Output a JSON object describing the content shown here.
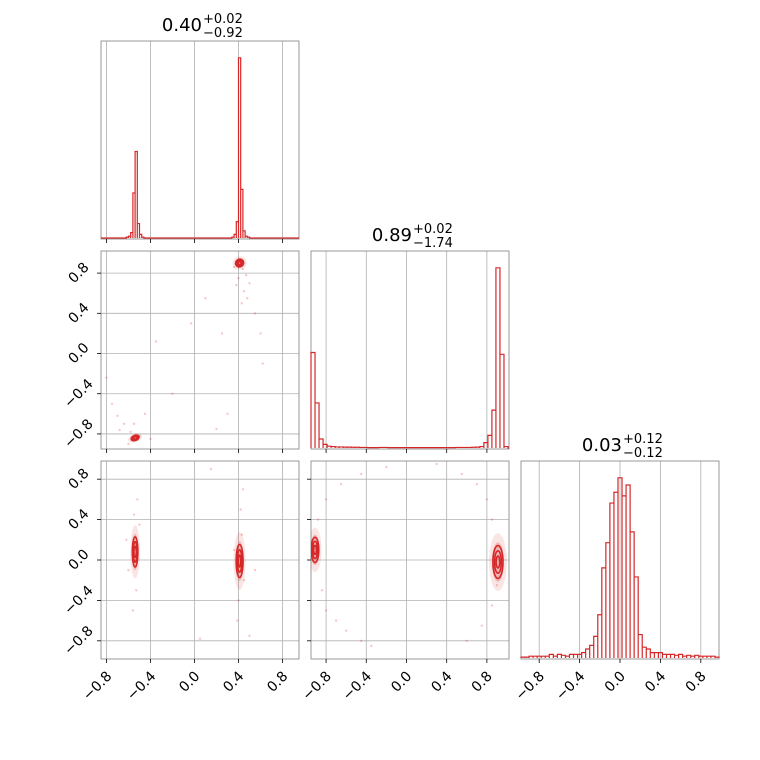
{
  "colors": {
    "series": "#d62728",
    "grid": "#b0b0b0",
    "frame": "#808080"
  },
  "chart_data": {
    "type": "corner",
    "grid": true,
    "parameters": [
      {
        "median": "0.40",
        "plus": "+0.02",
        "minus": "−0.92",
        "range": [
          -0.85,
          0.95
        ]
      },
      {
        "median": "0.89",
        "plus": "+0.02",
        "minus": "−1.74",
        "range": [
          -0.95,
          1.02
        ]
      },
      {
        "median": "0.03",
        "plus": "+0.12",
        "minus": "−0.12",
        "range": [
          -0.98,
          0.98
        ]
      }
    ],
    "tick_labels": [
      "−0.8",
      "−0.4",
      "0.0",
      "0.4",
      "0.8"
    ],
    "tick_values": [
      -0.8,
      -0.4,
      0.0,
      0.4,
      0.8
    ],
    "histograms": [
      {
        "param": 0,
        "bin_width": 0.02,
        "bins": [
          {
            "x": -0.61,
            "h": 0.005
          },
          {
            "x": -0.59,
            "h": 0.01
          },
          {
            "x": -0.57,
            "h": 0.03
          },
          {
            "x": -0.55,
            "h": 0.25
          },
          {
            "x": -0.53,
            "h": 0.48
          },
          {
            "x": -0.51,
            "h": 0.08
          },
          {
            "x": -0.49,
            "h": 0.02
          },
          {
            "x": -0.47,
            "h": 0.005
          },
          {
            "x": 0.35,
            "h": 0.005
          },
          {
            "x": 0.37,
            "h": 0.02
          },
          {
            "x": 0.39,
            "h": 0.09
          },
          {
            "x": 0.41,
            "h": 1.0
          },
          {
            "x": 0.43,
            "h": 0.27
          },
          {
            "x": 0.45,
            "h": 0.04
          },
          {
            "x": 0.47,
            "h": 0.01
          },
          {
            "x": 0.49,
            "h": 0.005
          }
        ]
      },
      {
        "param": 1,
        "bin_width": 0.04,
        "bins": [
          {
            "x": -0.93,
            "h": 0.53
          },
          {
            "x": -0.89,
            "h": 0.25
          },
          {
            "x": -0.85,
            "h": 0.05
          },
          {
            "x": -0.81,
            "h": 0.02
          },
          {
            "x": -0.77,
            "h": 0.01
          },
          {
            "x": -0.73,
            "h": 0.008
          },
          {
            "x": -0.69,
            "h": 0.006
          },
          {
            "x": -0.65,
            "h": 0.006
          },
          {
            "x": -0.61,
            "h": 0.005
          },
          {
            "x": -0.57,
            "h": 0.005
          },
          {
            "x": -0.53,
            "h": 0.004
          },
          {
            "x": -0.49,
            "h": 0.004
          },
          {
            "x": -0.45,
            "h": 0.003
          },
          {
            "x": -0.41,
            "h": 0.003
          },
          {
            "x": -0.37,
            "h": 0.002
          },
          {
            "x": -0.33,
            "h": 0.002
          },
          {
            "x": -0.29,
            "h": 0.002
          },
          {
            "x": -0.25,
            "h": 0.003
          },
          {
            "x": -0.21,
            "h": 0.003
          },
          {
            "x": -0.17,
            "h": 0.002
          },
          {
            "x": -0.13,
            "h": 0.002
          },
          {
            "x": -0.09,
            "h": 0.002
          },
          {
            "x": -0.05,
            "h": 0.002
          },
          {
            "x": -0.01,
            "h": 0.002
          },
          {
            "x": 0.03,
            "h": 0.002
          },
          {
            "x": 0.07,
            "h": 0.002
          },
          {
            "x": 0.11,
            "h": 0.002
          },
          {
            "x": 0.15,
            "h": 0.002
          },
          {
            "x": 0.19,
            "h": 0.002
          },
          {
            "x": 0.23,
            "h": 0.002
          },
          {
            "x": 0.27,
            "h": 0.002
          },
          {
            "x": 0.31,
            "h": 0.002
          },
          {
            "x": 0.35,
            "h": 0.002
          },
          {
            "x": 0.39,
            "h": 0.002
          },
          {
            "x": 0.43,
            "h": 0.002
          },
          {
            "x": 0.47,
            "h": 0.002
          },
          {
            "x": 0.51,
            "h": 0.003
          },
          {
            "x": 0.55,
            "h": 0.003
          },
          {
            "x": 0.59,
            "h": 0.003
          },
          {
            "x": 0.63,
            "h": 0.003
          },
          {
            "x": 0.67,
            "h": 0.004
          },
          {
            "x": 0.71,
            "h": 0.005
          },
          {
            "x": 0.75,
            "h": 0.008
          },
          {
            "x": 0.79,
            "h": 0.03
          },
          {
            "x": 0.83,
            "h": 0.07
          },
          {
            "x": 0.87,
            "h": 0.21
          },
          {
            "x": 0.91,
            "h": 1.0
          },
          {
            "x": 0.95,
            "h": 0.52
          },
          {
            "x": 0.99,
            "h": 0.008
          }
        ]
      },
      {
        "param": 2,
        "bin_width": 0.04,
        "bins": [
          {
            "x": -0.96,
            "h": 0.005
          },
          {
            "x": -0.92,
            "h": 0.005
          },
          {
            "x": -0.88,
            "h": 0.01
          },
          {
            "x": -0.84,
            "h": 0.01
          },
          {
            "x": -0.8,
            "h": 0.01
          },
          {
            "x": -0.76,
            "h": 0.01
          },
          {
            "x": -0.72,
            "h": 0.01
          },
          {
            "x": -0.68,
            "h": 0.02
          },
          {
            "x": -0.64,
            "h": 0.01
          },
          {
            "x": -0.6,
            "h": 0.02
          },
          {
            "x": -0.56,
            "h": 0.015
          },
          {
            "x": -0.52,
            "h": 0.01
          },
          {
            "x": -0.48,
            "h": 0.02
          },
          {
            "x": -0.44,
            "h": 0.02
          },
          {
            "x": -0.4,
            "h": 0.02
          },
          {
            "x": -0.36,
            "h": 0.03
          },
          {
            "x": -0.32,
            "h": 0.05
          },
          {
            "x": -0.28,
            "h": 0.07
          },
          {
            "x": -0.24,
            "h": 0.12
          },
          {
            "x": -0.2,
            "h": 0.24
          },
          {
            "x": -0.16,
            "h": 0.5
          },
          {
            "x": -0.12,
            "h": 0.64
          },
          {
            "x": -0.08,
            "h": 0.86
          },
          {
            "x": -0.04,
            "h": 0.92
          },
          {
            "x": 0.0,
            "h": 1.0
          },
          {
            "x": 0.04,
            "h": 0.9
          },
          {
            "x": 0.08,
            "h": 0.96
          },
          {
            "x": 0.12,
            "h": 0.7
          },
          {
            "x": 0.16,
            "h": 0.45
          },
          {
            "x": 0.2,
            "h": 0.13
          },
          {
            "x": 0.24,
            "h": 0.06
          },
          {
            "x": 0.28,
            "h": 0.05
          },
          {
            "x": 0.32,
            "h": 0.03
          },
          {
            "x": 0.36,
            "h": 0.03
          },
          {
            "x": 0.4,
            "h": 0.03
          },
          {
            "x": 0.44,
            "h": 0.02
          },
          {
            "x": 0.48,
            "h": 0.02
          },
          {
            "x": 0.52,
            "h": 0.02
          },
          {
            "x": 0.56,
            "h": 0.015
          },
          {
            "x": 0.6,
            "h": 0.02
          },
          {
            "x": 0.64,
            "h": 0.01
          },
          {
            "x": 0.68,
            "h": 0.015
          },
          {
            "x": 0.72,
            "h": 0.01
          },
          {
            "x": 0.76,
            "h": 0.015
          },
          {
            "x": 0.8,
            "h": 0.01
          },
          {
            "x": 0.84,
            "h": 0.01
          },
          {
            "x": 0.88,
            "h": 0.01
          },
          {
            "x": 0.92,
            "h": 0.01
          },
          {
            "x": 0.96,
            "h": 0.005
          }
        ]
      }
    ],
    "pairs": [
      {
        "x_param": 0,
        "y_param": 1,
        "modes": [
          {
            "cx": 0.41,
            "cy": 0.9,
            "rx": 0.03,
            "ry": 0.03,
            "angle": -30
          },
          {
            "cx": -0.54,
            "cy": -0.84,
            "rx": 0.03,
            "ry": 0.02,
            "angle": -20
          }
        ],
        "scatter": [
          [
            0.44,
            0.84
          ],
          [
            0.47,
            0.78
          ],
          [
            0.36,
            0.86
          ],
          [
            0.5,
            0.7
          ],
          [
            0.45,
            0.62
          ],
          [
            0.43,
            0.5
          ],
          [
            0.48,
            0.55
          ],
          [
            -0.03,
            0.3
          ],
          [
            -0.35,
            0.12
          ],
          [
            -0.58,
            -0.78
          ],
          [
            -0.64,
            -0.7
          ],
          [
            -0.7,
            -0.62
          ],
          [
            -0.6,
            -0.9
          ],
          [
            -0.5,
            -0.82
          ],
          [
            -0.68,
            -0.76
          ],
          [
            -0.75,
            -0.5
          ],
          [
            -0.8,
            -0.24
          ],
          [
            0.2,
            -0.75
          ],
          [
            0.3,
            -0.6
          ],
          [
            0.55,
            0.4
          ],
          [
            0.6,
            0.2
          ],
          [
            0.62,
            -0.1
          ],
          [
            0.4,
            0.75
          ],
          [
            0.38,
            0.68
          ],
          [
            -0.55,
            -0.7
          ],
          [
            -0.45,
            -0.6
          ],
          [
            -0.4,
            -0.85
          ],
          [
            0.1,
            0.55
          ],
          [
            -0.2,
            -0.4
          ],
          [
            0.25,
            0.2
          ]
        ]
      },
      {
        "x_param": 0,
        "y_param": 2,
        "modes": [
          {
            "cx": -0.54,
            "cy": 0.08,
            "rx": 0.02,
            "ry": 0.12,
            "angle": 0
          },
          {
            "cx": 0.41,
            "cy": -0.01,
            "rx": 0.025,
            "ry": 0.13,
            "angle": 0
          }
        ],
        "scatter": [
          [
            -0.55,
            0.45
          ],
          [
            -0.53,
            -0.3
          ],
          [
            -0.56,
            -0.5
          ],
          [
            -0.52,
            0.6
          ],
          [
            0.42,
            0.5
          ],
          [
            0.4,
            -0.4
          ],
          [
            0.44,
            0.7
          ],
          [
            0.39,
            -0.6
          ],
          [
            0.45,
            -0.2
          ],
          [
            0.43,
            0.25
          ],
          [
            -0.6,
            -0.1
          ],
          [
            0.36,
            0.1
          ],
          [
            0.5,
            -0.75
          ],
          [
            -0.5,
            0.35
          ],
          [
            0.05,
            -0.78
          ],
          [
            0.15,
            0.9
          ],
          [
            0.55,
            -0.1
          ],
          [
            -0.62,
            0.2
          ]
        ]
      },
      {
        "x_param": 1,
        "y_param": 2,
        "modes": [
          {
            "cx": -0.91,
            "cy": 0.1,
            "rx": 0.03,
            "ry": 0.1,
            "angle": 0
          },
          {
            "cx": 0.91,
            "cy": -0.02,
            "rx": 0.04,
            "ry": 0.13,
            "angle": 0
          }
        ],
        "scatter": [
          [
            -0.88,
            0.4
          ],
          [
            -0.84,
            -0.3
          ],
          [
            -0.8,
            -0.5
          ],
          [
            -0.7,
            -0.6
          ],
          [
            -0.6,
            -0.7
          ],
          [
            -0.45,
            -0.8
          ],
          [
            -0.35,
            -0.85
          ],
          [
            -0.8,
            0.6
          ],
          [
            -0.65,
            0.75
          ],
          [
            -0.45,
            0.85
          ],
          [
            0.85,
            0.4
          ],
          [
            0.8,
            0.6
          ],
          [
            0.7,
            0.75
          ],
          [
            0.85,
            -0.45
          ],
          [
            0.75,
            -0.65
          ],
          [
            0.6,
            -0.8
          ],
          [
            0.55,
            0.85
          ],
          [
            0.3,
            0.95
          ],
          [
            -0.2,
            0.92
          ],
          [
            0.9,
            -0.25
          ]
        ]
      }
    ]
  }
}
